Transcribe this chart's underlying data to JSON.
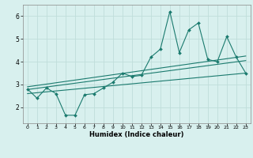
{
  "x": [
    0,
    1,
    2,
    3,
    4,
    5,
    6,
    7,
    8,
    9,
    10,
    11,
    12,
    13,
    14,
    15,
    16,
    17,
    18,
    19,
    20,
    21,
    22,
    23
  ],
  "y_main": [
    2.8,
    2.4,
    2.85,
    2.6,
    1.65,
    1.65,
    2.55,
    2.6,
    2.85,
    3.1,
    3.5,
    3.35,
    3.4,
    4.2,
    4.55,
    6.2,
    4.4,
    5.4,
    5.7,
    4.1,
    4.0,
    5.1,
    4.2,
    3.5
  ],
  "trend1_x": [
    0,
    23
  ],
  "trend1_y": [
    2.6,
    3.5
  ],
  "trend2_x": [
    0,
    23
  ],
  "trend2_y": [
    2.78,
    4.05
  ],
  "trend3_x": [
    0,
    23
  ],
  "trend3_y": [
    2.9,
    4.25
  ],
  "line_color": "#1a7a6e",
  "bg_color": "#d8f0ee",
  "grid_color": "#c0deda",
  "xlabel": "Humidex (Indice chaleur)",
  "xlim": [
    -0.5,
    23.5
  ],
  "ylim": [
    1.3,
    6.5
  ],
  "yticks": [
    2,
    3,
    4,
    5,
    6
  ],
  "xticks": [
    0,
    1,
    2,
    3,
    4,
    5,
    6,
    7,
    8,
    9,
    10,
    11,
    12,
    13,
    14,
    15,
    16,
    17,
    18,
    19,
    20,
    21,
    22,
    23
  ]
}
